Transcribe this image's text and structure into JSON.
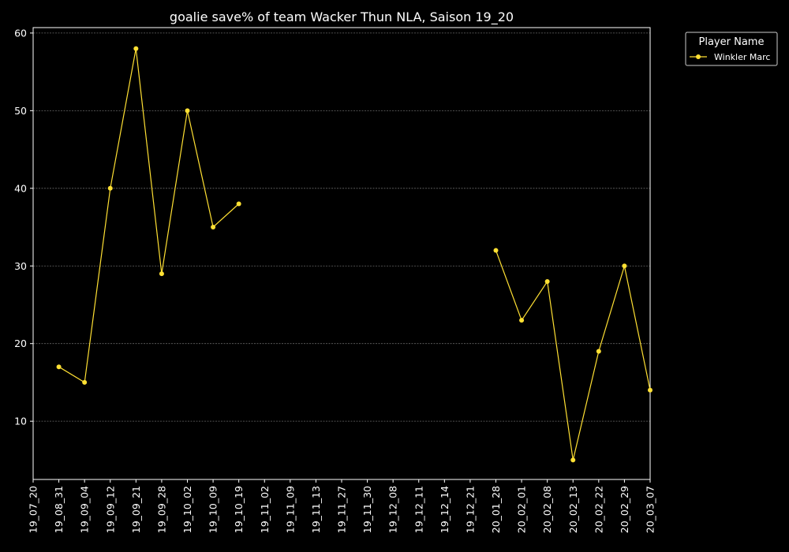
{
  "chart_data": {
    "type": "line",
    "title": "goalie save% of team Wacker Thun NLA, Saison 19_20",
    "xlabel": "",
    "ylabel": "",
    "categories": [
      "19_07_20",
      "19_08_31",
      "19_09_04",
      "19_09_12",
      "19_09_21",
      "19_09_28",
      "19_10_02",
      "19_10_09",
      "19_10_19",
      "19_11_02",
      "19_11_09",
      "19_11_13",
      "19_11_27",
      "19_11_30",
      "19_12_08",
      "19_12_11",
      "19_12_14",
      "19_12_21",
      "20_01_28",
      "20_02_01",
      "20_02_08",
      "20_02_13",
      "20_02_22",
      "20_02_29",
      "20_03_07"
    ],
    "yticks": [
      10,
      20,
      30,
      40,
      50,
      60
    ],
    "ylim": [
      2.5,
      60.7
    ],
    "grid": true,
    "legend": {
      "title": "Player Name",
      "placement": "outside-top-right"
    },
    "series": [
      {
        "name": "Winkler Marc",
        "color": "#ffe033",
        "values": [
          null,
          17,
          15,
          40,
          58,
          29,
          50,
          35,
          38,
          null,
          null,
          null,
          null,
          null,
          null,
          null,
          null,
          null,
          32,
          23,
          28,
          5,
          19,
          30,
          14
        ]
      }
    ]
  }
}
